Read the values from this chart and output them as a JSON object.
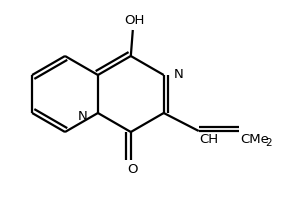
{
  "background_color": "#ffffff",
  "line_color": "#000000",
  "text_color": "#000000",
  "bond_lw": 1.6,
  "figsize": [
    2.99,
    1.99
  ],
  "dpi": 100,
  "xlim": [
    0,
    299
  ],
  "ylim": [
    0,
    199
  ]
}
